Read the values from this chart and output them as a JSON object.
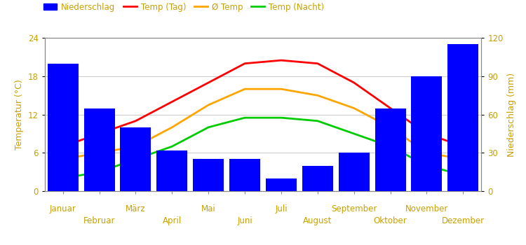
{
  "months": [
    "Januar",
    "Februar",
    "März",
    "April",
    "Mai",
    "Juni",
    "Juli",
    "August",
    "September",
    "Oktober",
    "November",
    "Dezember"
  ],
  "precipitation": [
    100,
    65,
    50,
    32,
    25,
    25,
    10,
    20,
    30,
    65,
    90,
    115
  ],
  "temp_day": [
    7.0,
    9.0,
    11.0,
    14.0,
    17.0,
    20.0,
    20.5,
    20.0,
    17.0,
    13.0,
    9.0,
    7.0
  ],
  "temp_avg": [
    5.0,
    6.0,
    7.0,
    10.0,
    13.5,
    16.0,
    16.0,
    15.0,
    13.0,
    10.0,
    6.0,
    5.0
  ],
  "temp_night": [
    2.0,
    3.0,
    5.0,
    7.0,
    10.0,
    11.5,
    11.5,
    11.0,
    9.0,
    7.0,
    4.0,
    2.5
  ],
  "bar_color": "#0000ff",
  "temp_day_color": "#ff0000",
  "temp_avg_color": "#ffa500",
  "temp_night_color": "#00cc00",
  "ylabel_left": "Temperatur (°C)",
  "ylabel_right": "Niederschlag (mm)",
  "ylim_left": [
    0,
    24
  ],
  "ylim_right": [
    0,
    120
  ],
  "yticks_left": [
    0,
    6,
    12,
    18,
    24
  ],
  "yticks_right": [
    0,
    30,
    60,
    90,
    120
  ],
  "legend_labels": [
    "Niederschlag",
    "Temp (Tag)",
    "Ø Temp",
    "Temp (Nacht)"
  ],
  "background_color": "#ffffff",
  "grid_color": "#cccccc",
  "label_color": "#c8a000",
  "axis_color": "#888888"
}
